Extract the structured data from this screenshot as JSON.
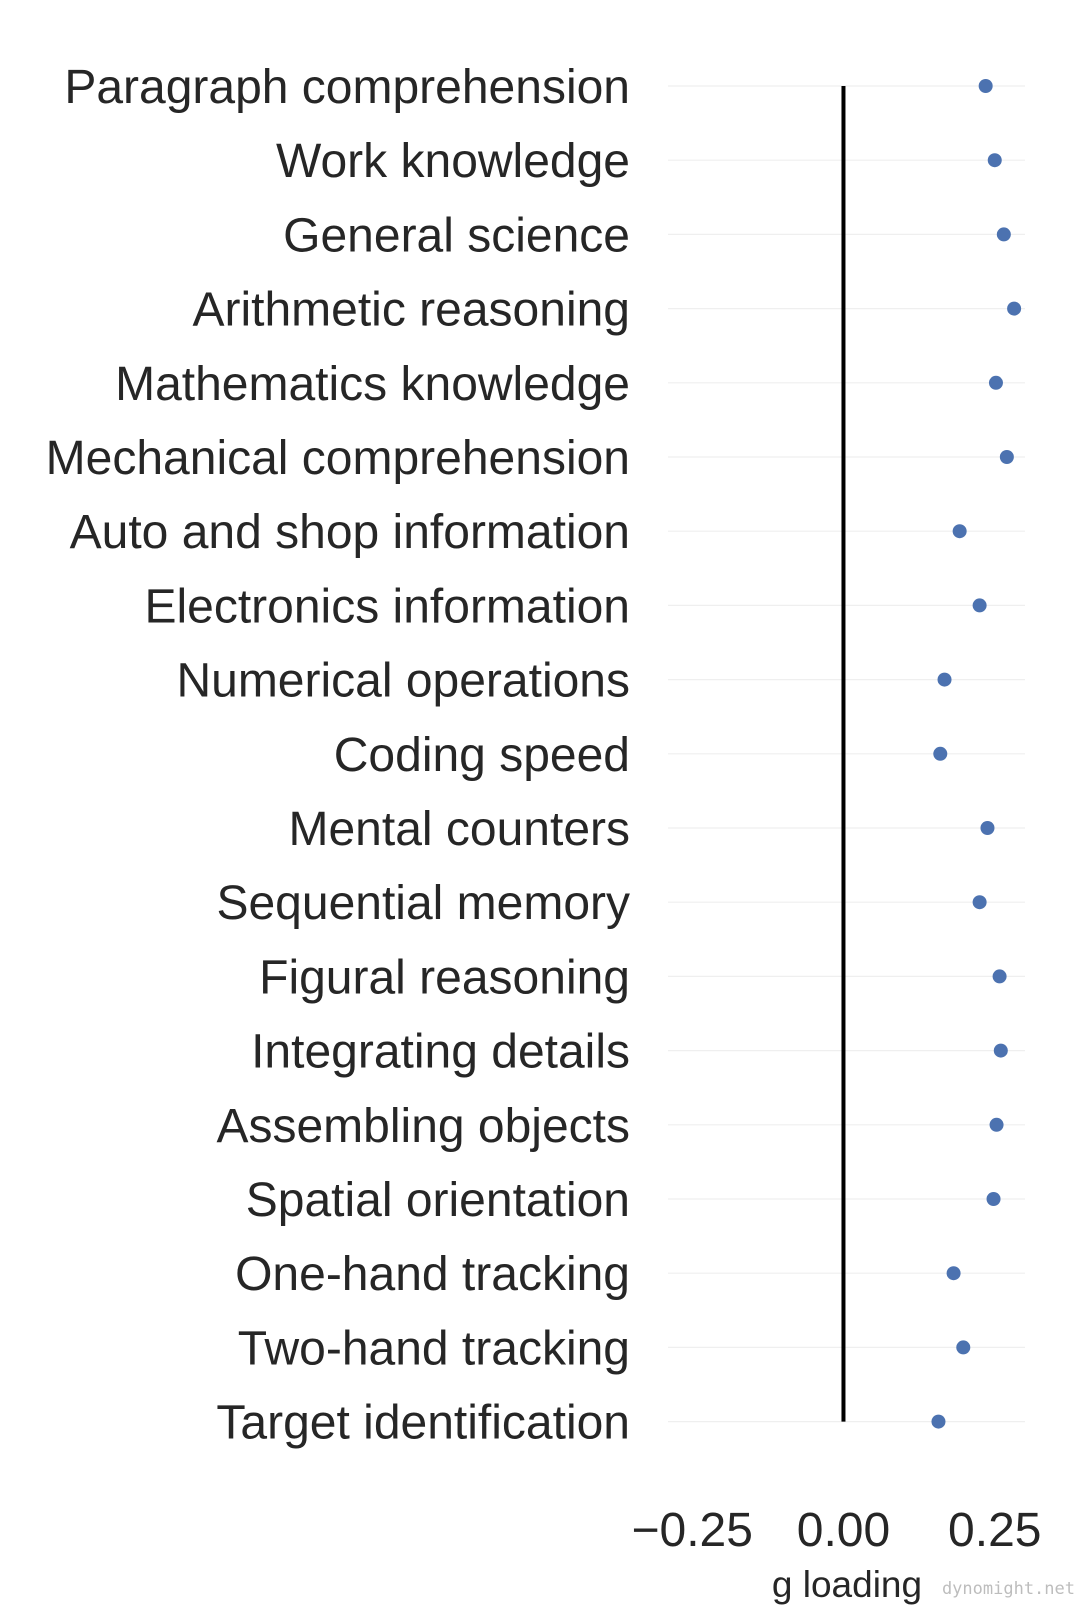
{
  "chart_data": {
    "type": "scatter",
    "orientation": "horizontal",
    "title": "",
    "xlabel": "g loading",
    "ylabel": "",
    "xlim": [
      -0.29,
      0.3
    ],
    "xticks": [
      {
        "value": -0.25,
        "label": "−0.25"
      },
      {
        "value": 0.0,
        "label": "0.00"
      },
      {
        "value": 0.25,
        "label": "0.25"
      }
    ],
    "reference_line": {
      "x": 0.0,
      "color": "#000000"
    },
    "grid": true,
    "marker_color": "#4c72b0",
    "categories": [
      "Paragraph comprehension",
      "Work knowledge",
      "General science",
      "Arithmetic reasoning",
      "Mathematics knowledge",
      "Mechanical comprehension",
      "Auto and shop information",
      "Electronics information",
      "Numerical operations",
      "Coding speed",
      "Mental counters",
      "Sequential memory",
      "Figural reasoning",
      "Integrating details",
      "Assembling objects",
      "Spatial orientation",
      "One-hand tracking",
      "Two-hand tracking",
      "Target identification"
    ],
    "values": [
      0.235,
      0.25,
      0.265,
      0.282,
      0.252,
      0.27,
      0.192,
      0.225,
      0.167,
      0.16,
      0.238,
      0.225,
      0.258,
      0.26,
      0.253,
      0.248,
      0.182,
      0.198,
      0.157
    ]
  },
  "watermark": "dynomight.net"
}
